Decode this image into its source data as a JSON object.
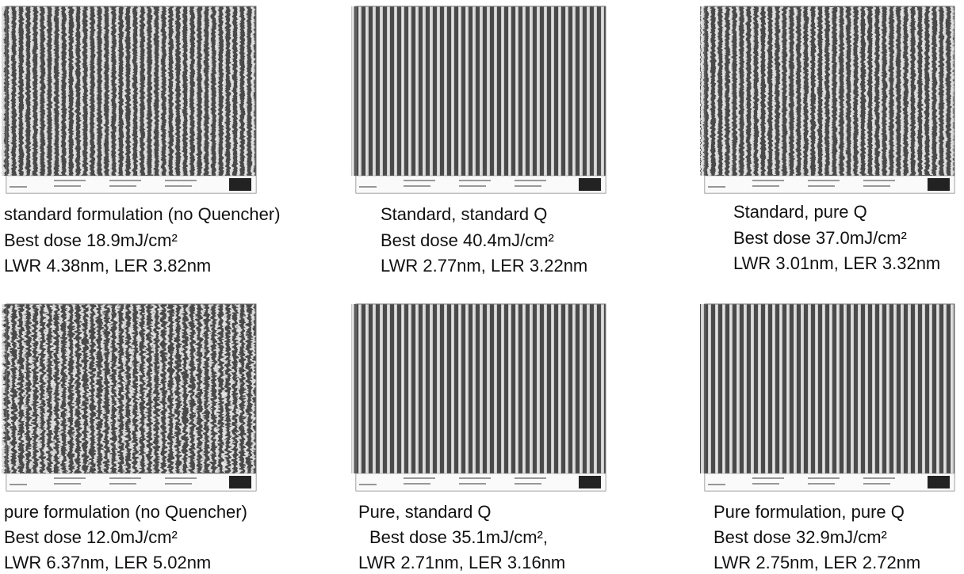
{
  "panels": [
    {
      "lines": [
        "standard formulation (no Quencher)",
        "Best dose 18.9mJ/cm²",
        "LWR 4.38nm, LER 3.82nm"
      ]
    },
    {
      "lines": [
        "Standard, standard Q",
        "Best dose 40.4mJ/cm²",
        "LWR 2.77nm, LER 3.22nm"
      ]
    },
    {
      "lines": [
        "Standard, pure Q",
        "Best dose 37.0mJ/cm²",
        "LWR 3.01nm, LER 3.32nm"
      ]
    },
    {
      "lines": [
        "pure formulation (no Quencher)",
        "Best dose 12.0mJ/cm²",
        "LWR 6.37nm, LER 5.02nm"
      ]
    },
    {
      "lines": [
        "Pure, standard Q",
        "Best dose 35.1mJ/cm²,",
        "LWR 2.71nm, LER 3.16nm"
      ]
    },
    {
      "lines": [
        "Pure formulation, pure Q",
        "Best dose 32.9mJ/cm²",
        "LWR 2.75nm, LER 2.72nm"
      ]
    }
  ]
}
